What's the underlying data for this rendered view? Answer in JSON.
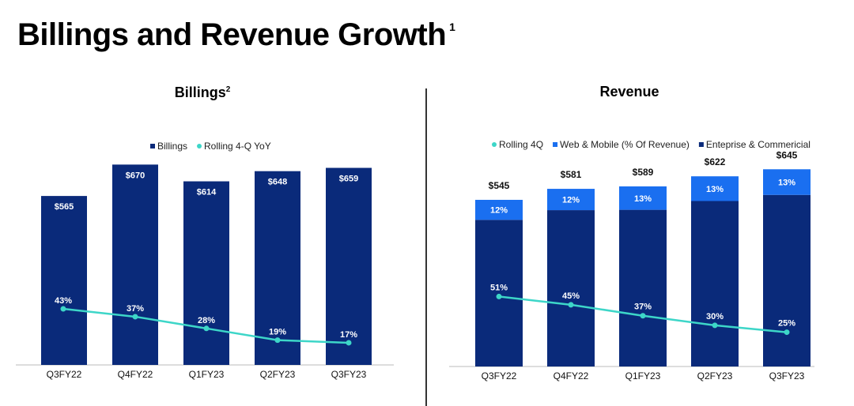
{
  "page": {
    "title": "Billings and Revenue Growth",
    "title_sup": "1"
  },
  "colors": {
    "navy": "#0a2a7a",
    "web_mobile": "#1a6ff0",
    "line": "#3dd6c8"
  },
  "chart_data": [
    {
      "type": "bar",
      "title": "Billings",
      "title_sup": "2",
      "categories": [
        "Q3FY22",
        "Q4FY22",
        "Q1FY23",
        "Q2FY23",
        "Q3FY23"
      ],
      "legend": [
        {
          "label": "Billings",
          "marker": "square",
          "color": "#0a2a7a"
        },
        {
          "label": "Rolling 4-Q YoY",
          "marker": "dot",
          "color": "#3dd6c8"
        }
      ],
      "legend_position": "top-center",
      "series": [
        {
          "name": "Billings",
          "type": "bar",
          "values": [
            565,
            670,
            614,
            648,
            659
          ],
          "labels": [
            "$565",
            "$670",
            "$614",
            "$648",
            "$659"
          ]
        },
        {
          "name": "Rolling 4-Q YoY",
          "type": "line",
          "values": [
            43,
            37,
            28,
            19,
            17
          ],
          "labels": [
            "43%",
            "37%",
            "28%",
            "19%",
            "17%"
          ]
        }
      ],
      "ylim": [
        0,
        700
      ],
      "line_ylim": [
        0,
        80
      ],
      "grid": false
    },
    {
      "type": "bar",
      "stacked": true,
      "title": "Revenue",
      "categories": [
        "Q3FY22",
        "Q4FY22",
        "Q1FY23",
        "Q2FY23",
        "Q3FY23"
      ],
      "legend": [
        {
          "label": "Rolling 4Q",
          "marker": "dot",
          "color": "#3dd6c8"
        },
        {
          "label": "Web & Mobile (%  Of Revenue)",
          "marker": "square",
          "color": "#1a6ff0"
        },
        {
          "label": "Enteprise & Commericial",
          "marker": "square",
          "color": "#0a2a7a"
        }
      ],
      "legend_position": "top-center",
      "totals": [
        545,
        581,
        589,
        622,
        645
      ],
      "total_labels": [
        "$545",
        "$581",
        "$589",
        "$622",
        "$645"
      ],
      "series": [
        {
          "name": "Web & Mobile (%  Of Revenue)",
          "type": "bar",
          "percent": [
            12,
            12,
            13,
            13,
            13
          ],
          "labels": [
            "12%",
            "12%",
            "13%",
            "13%",
            "13%"
          ]
        },
        {
          "name": "Enteprise & Commericial",
          "type": "bar"
        },
        {
          "name": "Rolling 4Q",
          "type": "line",
          "values": [
            51,
            45,
            37,
            30,
            25
          ],
          "labels": [
            "51%",
            "45%",
            "37%",
            "30%",
            "25%"
          ]
        }
      ],
      "ylim": [
        0,
        700
      ],
      "line_ylim": [
        0,
        95
      ],
      "grid": false
    }
  ]
}
